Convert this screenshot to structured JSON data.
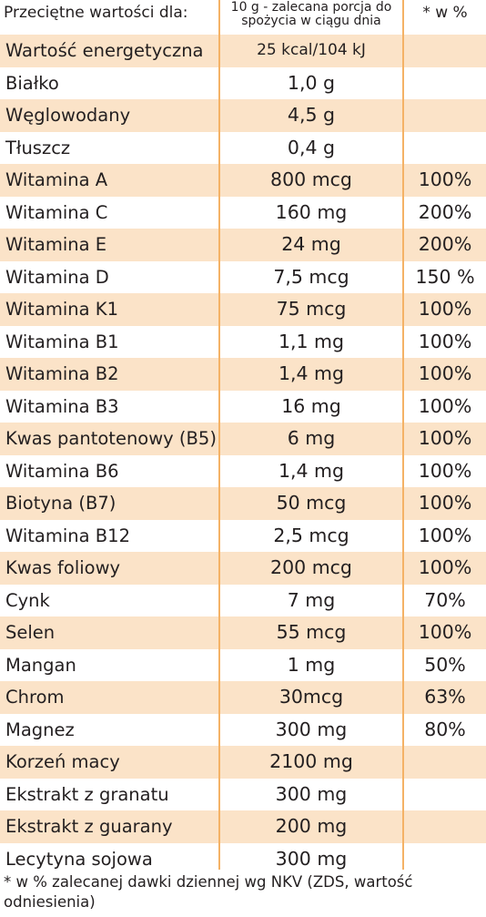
{
  "header": {
    "label_col": "Przeciętne wartości dla:",
    "portion_col": "10 g - zalecana porcja do spożycia w ciągu dnia",
    "percent_col": "* w %"
  },
  "rows": [
    {
      "name": "Wartość energetyczna",
      "amount": "25 kcal/104 kJ",
      "percent": ""
    },
    {
      "name": "Białko",
      "amount": "1,0 g",
      "percent": ""
    },
    {
      "name": "Węglowodany",
      "amount": "4,5 g",
      "percent": ""
    },
    {
      "name": "Tłuszcz",
      "amount": "0,4 g",
      "percent": ""
    },
    {
      "name": "Witamina A",
      "amount": "800 mcg",
      "percent": "100%"
    },
    {
      "name": "Witamina C",
      "amount": "160 mg",
      "percent": "200%"
    },
    {
      "name": "Witamina E",
      "amount": "24 mg",
      "percent": "200%"
    },
    {
      "name": "Witamina D",
      "amount": "7,5 mcg",
      "percent": "150 %"
    },
    {
      "name": "Witamina K1",
      "amount": "75 mcg",
      "percent": "100%"
    },
    {
      "name": "Witamina B1",
      "amount": "1,1 mg",
      "percent": "100%"
    },
    {
      "name": "Witamina B2",
      "amount": "1,4 mg",
      "percent": "100%"
    },
    {
      "name": "Witamina B3",
      "amount": "16 mg",
      "percent": "100%"
    },
    {
      "name": "Kwas pantotenowy (B5)",
      "amount": "6 mg",
      "percent": "100%"
    },
    {
      "name": "Witamina B6",
      "amount": "1,4 mg",
      "percent": "100%"
    },
    {
      "name": "Biotyna (B7)",
      "amount": "50 mcg",
      "percent": "100%"
    },
    {
      "name": "Witamina B12",
      "amount": "2,5 mcg",
      "percent": "100%"
    },
    {
      "name": "Kwas foliowy",
      "amount": "200 mcg",
      "percent": "100%"
    },
    {
      "name": "Cynk",
      "amount": "7 mg",
      "percent": "70%"
    },
    {
      "name": "Selen",
      "amount": "55 mcg",
      "percent": "100%"
    },
    {
      "name": "Mangan",
      "amount": "1 mg",
      "percent": "50%"
    },
    {
      "name": "Chrom",
      "amount": "30mcg",
      "percent": "63%"
    },
    {
      "name": "Magnez",
      "amount": "300 mg",
      "percent": "80%"
    },
    {
      "name": "Korzeń macy",
      "amount": "2100 mg",
      "percent": ""
    },
    {
      "name": "Ekstrakt z granatu",
      "amount": "300 mg",
      "percent": ""
    },
    {
      "name": "Ekstrakt z guarany",
      "amount": "200 mg",
      "percent": ""
    },
    {
      "name": "Lecytyna sojowa",
      "amount": "300 mg",
      "percent": ""
    }
  ],
  "footnote": "* w % zalecanej dawki dziennej wg NKV (ZDS, wartość odniesienia)",
  "colors": {
    "row_shade": "#fbe3c8",
    "divider": "#f4b266",
    "text": "#231f20"
  }
}
